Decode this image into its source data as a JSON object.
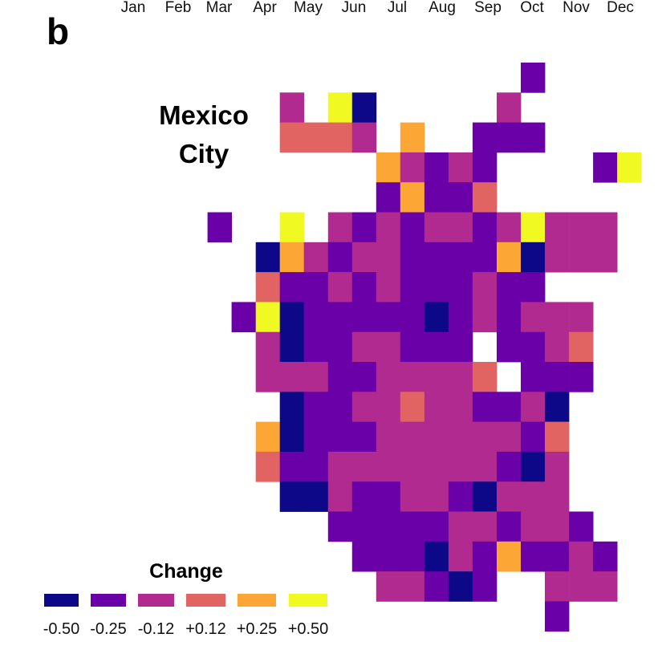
{
  "chart_data": {
    "type": "heatmap",
    "panel_label": "b",
    "title": "Mexico City",
    "title_lines": [
      "Mexico",
      "City"
    ],
    "month_labels": [
      "Jan",
      "Feb",
      "Mar",
      "Apr",
      "May",
      "Jun",
      "Jul",
      "Aug",
      "Sep",
      "Oct",
      "Nov",
      "Dec"
    ],
    "legend": {
      "title": "Change",
      "placement": "bottom-left",
      "entries": [
        {
          "code": "N",
          "label": "-0.50",
          "value": -0.5,
          "color": "#0d0887"
        },
        {
          "code": "P",
          "label": "-0.25",
          "value": -0.25,
          "color": "#6a00a8"
        },
        {
          "code": "M",
          "label": "-0.12",
          "value": -0.12,
          "color": "#b12a90"
        },
        {
          "code": "S",
          "label": "+0.12",
          "value": 0.12,
          "color": "#e16462"
        },
        {
          "code": "O",
          "label": "+0.25",
          "value": 0.25,
          "color": "#fca636"
        },
        {
          "code": "Y",
          "label": "+0.50",
          "value": 0.5,
          "color": "#f0f921"
        }
      ]
    },
    "grid_note": "rows top to bottom, columns left to right; '.' = no data",
    "grid": [
      ".............P....",
      "...M.YN.....M.....",
      "...SSSM.O..PPP....",
      ".......OMPMP....PY",
      ".......POPPS......",
      "P..Y.MPMPMMPMYMMM.",
      "..NOMPMMPPPPONMMM.",
      "..SPPMPMPPPMPP....",
      ".PYNPPPPPNPMPMMM..",
      "..MNPPMMPPP.PPMS..",
      "..MMMPPMMMMS.PPP..",
      "...NPPMMSMMPPMN...",
      "..ONPPPMMMMMMPS...",
      "..SPPMMMMMMMPNM...",
      "...NNMPPMMPNMMM...",
      ".....PPPPPMMPMMP..",
      "......PPPNMPOPPMP.",
      ".......MMPNP..MMM.",
      "..............P..."
    ]
  }
}
